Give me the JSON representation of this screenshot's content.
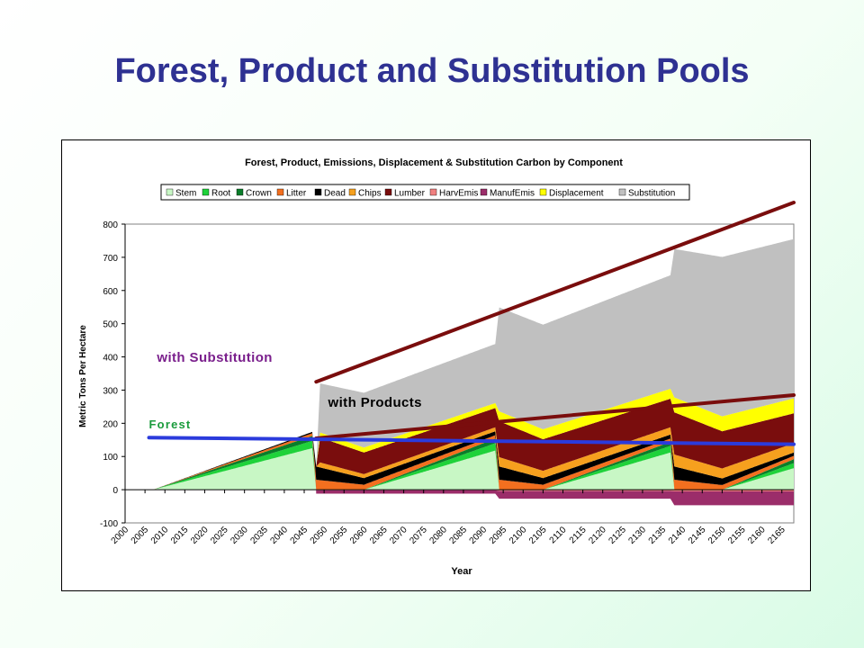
{
  "slide": {
    "title": "Forest, Product and Substitution Pools"
  },
  "colors": {
    "title": "#2e3192",
    "Stem": "#c8f7c5",
    "Root": "#1fd23a",
    "Crown": "#0a7d2a",
    "Litter": "#f36f1f",
    "Dead": "#000000",
    "Chips": "#f6a01e",
    "Lumber": "#7a0d0d",
    "HarvEmis": "#f08080",
    "ManufEmis": "#9b2d6a",
    "Displacement": "#ffff00",
    "Substitution": "#c0c0c0"
  },
  "chart_data": {
    "type": "area",
    "stacked": true,
    "title": "Forest, Product, Emissions, Displacement & Substitution Carbon by Component",
    "xlabel": "Year",
    "ylabel": "Metric Tons Per Hectare",
    "ylim": [
      -100,
      800
    ],
    "yticks": [
      -100,
      0,
      100,
      200,
      300,
      400,
      500,
      600,
      700,
      800
    ],
    "xticks": [
      "2000",
      "2005",
      "2010",
      "2015",
      "2020",
      "2025",
      "2030",
      "2035",
      "2040",
      "2045",
      "2050",
      "2055",
      "2060",
      "2065",
      "2070",
      "2075",
      "2080",
      "2085",
      "2090",
      "2095",
      "2100",
      "2105",
      "2110",
      "2115",
      "2120",
      "2125",
      "2130",
      "2135",
      "2140",
      "2145",
      "2150",
      "2155",
      "2160",
      "2165"
    ],
    "x_range": [
      2000,
      2168
    ],
    "legend_position": "top",
    "legend": [
      "Stem",
      "Root",
      "Crown",
      "Litter",
      "Dead",
      "Chips",
      "Lumber",
      "HarvEmis",
      "ManufEmis",
      "Displacement",
      "Substitution"
    ],
    "series": [
      {
        "name": "Stem",
        "points": [
          [
            2007,
            0
          ],
          [
            2047,
            125
          ],
          [
            2048,
            0
          ],
          [
            2060,
            0
          ],
          [
            2093,
            118
          ],
          [
            2094,
            0
          ],
          [
            2105,
            0
          ],
          [
            2137,
            112
          ],
          [
            2138,
            0
          ],
          [
            2150,
            0
          ],
          [
            2168,
            65
          ]
        ]
      },
      {
        "name": "Root",
        "points": [
          [
            2007,
            0
          ],
          [
            2047,
            22
          ],
          [
            2048,
            0
          ],
          [
            2060,
            0
          ],
          [
            2093,
            22
          ],
          [
            2094,
            0
          ],
          [
            2105,
            0
          ],
          [
            2137,
            20
          ],
          [
            2138,
            0
          ],
          [
            2150,
            0
          ],
          [
            2168,
            15
          ]
        ]
      },
      {
        "name": "Crown",
        "points": [
          [
            2007,
            0
          ],
          [
            2047,
            15
          ],
          [
            2048,
            0
          ],
          [
            2060,
            0
          ],
          [
            2093,
            14
          ],
          [
            2094,
            0
          ],
          [
            2105,
            0
          ],
          [
            2137,
            12
          ],
          [
            2138,
            0
          ],
          [
            2150,
            0
          ],
          [
            2168,
            12
          ]
        ]
      },
      {
        "name": "Litter",
        "points": [
          [
            2007,
            0
          ],
          [
            2047,
            8
          ],
          [
            2048,
            30
          ],
          [
            2060,
            15
          ],
          [
            2093,
            10
          ],
          [
            2094,
            30
          ],
          [
            2105,
            15
          ],
          [
            2137,
            10
          ],
          [
            2138,
            30
          ],
          [
            2150,
            14
          ],
          [
            2168,
            10
          ]
        ]
      },
      {
        "name": "Dead",
        "points": [
          [
            2007,
            0
          ],
          [
            2047,
            4
          ],
          [
            2048,
            40
          ],
          [
            2060,
            20
          ],
          [
            2093,
            12
          ],
          [
            2094,
            40
          ],
          [
            2105,
            20
          ],
          [
            2137,
            12
          ],
          [
            2138,
            40
          ],
          [
            2150,
            20
          ],
          [
            2168,
            10
          ]
        ]
      },
      {
        "name": "Chips",
        "points": [
          [
            2048,
            0
          ],
          [
            2049,
            15
          ],
          [
            2060,
            12
          ],
          [
            2093,
            12
          ],
          [
            2094,
            28
          ],
          [
            2105,
            22
          ],
          [
            2137,
            22
          ],
          [
            2138,
            36
          ],
          [
            2150,
            30
          ],
          [
            2168,
            28
          ]
        ]
      },
      {
        "name": "Lumber",
        "points": [
          [
            2048,
            0
          ],
          [
            2049,
            75
          ],
          [
            2060,
            65
          ],
          [
            2093,
            58
          ],
          [
            2094,
            108
          ],
          [
            2105,
            95
          ],
          [
            2137,
            86
          ],
          [
            2138,
            127
          ],
          [
            2150,
            112
          ],
          [
            2168,
            90
          ]
        ]
      },
      {
        "name": "Displacement",
        "points": [
          [
            2048,
            0
          ],
          [
            2049,
            15
          ],
          [
            2060,
            15
          ],
          [
            2093,
            15
          ],
          [
            2094,
            30
          ],
          [
            2105,
            30
          ],
          [
            2137,
            30
          ],
          [
            2138,
            45
          ],
          [
            2150,
            45
          ],
          [
            2168,
            45
          ]
        ]
      },
      {
        "name": "Substitution",
        "points": [
          [
            2048,
            0
          ],
          [
            2049,
            148
          ],
          [
            2060,
            165
          ],
          [
            2093,
            178
          ],
          [
            2094,
            313
          ],
          [
            2105,
            315
          ],
          [
            2137,
            342
          ],
          [
            2138,
            447
          ],
          [
            2150,
            480
          ],
          [
            2168,
            480
          ]
        ]
      },
      {
        "name": "HarvEmis",
        "points": [
          [
            2048,
            -2
          ],
          [
            2093,
            -2
          ],
          [
            2094,
            -4
          ],
          [
            2137,
            -4
          ],
          [
            2138,
            -5
          ],
          [
            2168,
            -5
          ]
        ]
      },
      {
        "name": "ManufEmis",
        "points": [
          [
            2048,
            -10
          ],
          [
            2093,
            -10
          ],
          [
            2094,
            -23
          ],
          [
            2137,
            -23
          ],
          [
            2138,
            -42
          ],
          [
            2168,
            -42
          ]
        ]
      }
    ],
    "annotations": [
      {
        "text": "with Substitution",
        "x": 2008,
        "y": 385,
        "color": "#7a1f8c"
      },
      {
        "text": "with Products",
        "x": 2051,
        "y": 250,
        "color": "#000000"
      },
      {
        "text": "Forest",
        "x": 2006,
        "y": 185,
        "color": "#1a9b3c"
      }
    ],
    "trend_lines": [
      {
        "name": "Substitution trend",
        "from": [
          2048,
          325
        ],
        "to": [
          2168,
          865
        ],
        "color": "#7a0d0d"
      },
      {
        "name": "Products trend",
        "from": [
          2048,
          155
        ],
        "to": [
          2168,
          285
        ],
        "color": "#7a0d0d"
      },
      {
        "name": "Forest trend",
        "from": [
          2006,
          157
        ],
        "to": [
          2168,
          137
        ],
        "color": "#2b3bdc"
      }
    ]
  }
}
